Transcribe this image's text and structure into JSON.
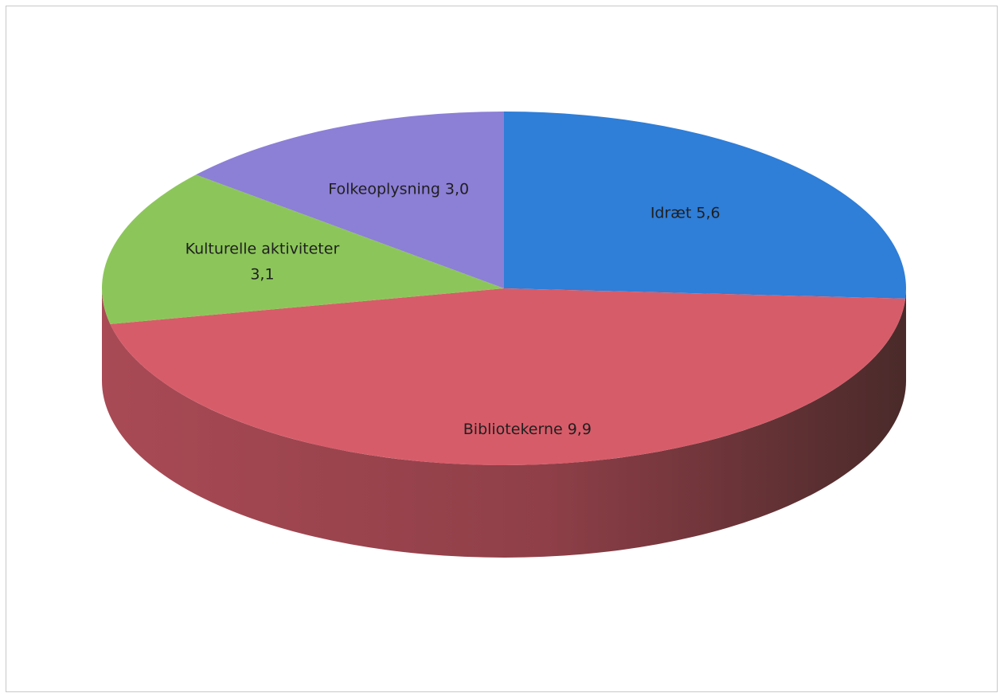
{
  "chart_data": {
    "type": "pie",
    "style": "3d",
    "title": "",
    "legend": "none",
    "slices": [
      {
        "label": "Idræt",
        "value": 5.6,
        "display": "5,6",
        "color": "#2F7ED8",
        "label_lines": [
          "Idræt 5,6"
        ]
      },
      {
        "label": "Bibliotekerne",
        "value": 9.9,
        "display": "9,9",
        "color": "#D75C69",
        "label_lines": [
          "Bibliotekerne 9,9"
        ]
      },
      {
        "label": "Kulturelle aktiviteter",
        "value": 3.1,
        "display": "3,1",
        "color": "#8CC65A",
        "label_lines": [
          "Kulturelle aktiviteter",
          "3,1"
        ]
      },
      {
        "label": "Folkeoplysning",
        "value": 3.0,
        "display": "3,0",
        "color": "#8C7FD6",
        "label_lines": [
          "Folkeoplysning 3,0"
        ]
      }
    ]
  }
}
